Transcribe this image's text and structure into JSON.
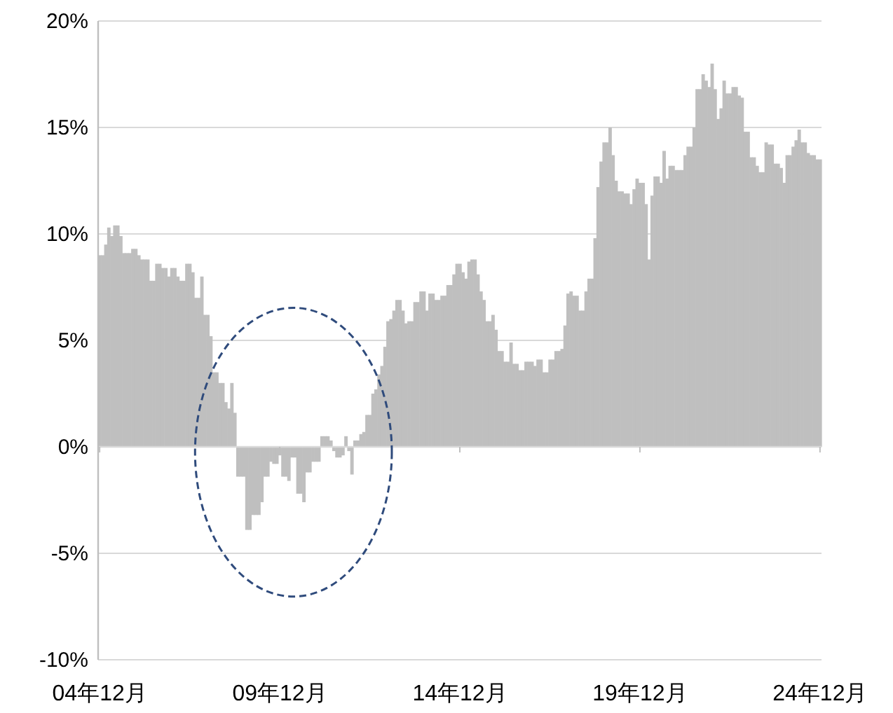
{
  "chart_data": {
    "type": "bar",
    "categories": [
      "04年12月",
      null,
      null,
      null,
      null,
      null,
      null,
      null,
      null,
      null,
      null,
      null,
      null,
      null,
      null,
      null,
      null,
      null,
      null,
      null,
      null,
      null,
      null,
      null,
      null,
      null,
      null,
      null,
      null,
      null,
      null,
      null,
      null,
      null,
      null,
      null,
      null,
      null,
      null,
      null,
      null,
      null,
      null,
      null,
      null,
      null,
      null,
      null,
      null,
      null,
      null,
      null,
      null,
      null,
      null,
      null,
      null,
      null,
      null,
      null,
      "09年12月",
      null,
      null,
      null,
      null,
      null,
      null,
      null,
      null,
      null,
      null,
      null,
      null,
      null,
      null,
      null,
      null,
      null,
      null,
      null,
      null,
      null,
      null,
      null,
      null,
      null,
      null,
      null,
      null,
      null,
      null,
      null,
      null,
      null,
      null,
      null,
      null,
      null,
      null,
      null,
      null,
      null,
      null,
      null,
      null,
      null,
      null,
      null,
      null,
      null,
      null,
      null,
      null,
      null,
      null,
      null,
      null,
      null,
      null,
      null,
      "14年12月",
      null,
      null,
      null,
      null,
      null,
      null,
      null,
      null,
      null,
      null,
      null,
      null,
      null,
      null,
      null,
      null,
      null,
      null,
      null,
      null,
      null,
      null,
      null,
      null,
      null,
      null,
      null,
      null,
      null,
      null,
      null,
      null,
      null,
      null,
      null,
      null,
      null,
      null,
      null,
      null,
      null,
      null,
      null,
      null,
      null,
      null,
      null,
      null,
      null,
      null,
      null,
      null,
      null,
      null,
      null,
      null,
      null,
      null,
      null,
      "19年12月",
      null,
      null,
      null,
      null,
      null,
      null,
      null,
      null,
      null,
      null,
      null,
      null,
      null,
      null,
      null,
      null,
      null,
      null,
      null,
      null,
      null,
      null,
      null,
      null,
      null,
      null,
      null,
      null,
      null,
      null,
      null,
      null,
      null,
      null,
      null,
      null,
      null,
      null,
      null,
      null,
      null,
      null,
      null,
      null,
      null,
      null,
      null,
      null,
      null,
      null,
      null,
      null,
      null,
      null,
      null,
      null,
      null,
      null,
      null,
      "24年12月"
    ],
    "values": [
      9.0,
      9.0,
      9.5,
      10.3,
      9.9,
      10.4,
      10.4,
      9.9,
      9.1,
      9.1,
      9.1,
      9.3,
      9.3,
      9.0,
      8.8,
      8.8,
      8.8,
      7.8,
      7.8,
      8.6,
      8.6,
      8.4,
      8.4,
      8.0,
      8.4,
      8.4,
      8.0,
      7.8,
      7.8,
      8.6,
      8.6,
      8.2,
      7.0,
      7.0,
      8.0,
      6.2,
      6.2,
      5.2,
      3.5,
      3.5,
      3.0,
      3.0,
      2.1,
      1.8,
      3.0,
      1.6,
      -1.4,
      -1.4,
      -1.4,
      -3.9,
      -3.9,
      -3.2,
      -3.2,
      -3.2,
      -2.6,
      -1.4,
      -1.4,
      -0.7,
      -0.8,
      -0.8,
      -0.4,
      -1.4,
      -1.4,
      -1.6,
      -0.5,
      -0.5,
      -2.2,
      -2.2,
      -2.6,
      -1.2,
      -1.2,
      -0.7,
      -0.7,
      -0.7,
      0.5,
      0.5,
      0.5,
      0.3,
      -0.2,
      -0.5,
      -0.5,
      -0.4,
      0.5,
      -0.2,
      -1.3,
      0.3,
      0.3,
      0.6,
      0.7,
      1.5,
      1.5,
      2.5,
      2.7,
      3.4,
      3.8,
      4.7,
      5.9,
      6.0,
      6.4,
      6.9,
      6.9,
      6.4,
      5.8,
      5.9,
      5.9,
      6.8,
      6.8,
      7.3,
      7.3,
      6.4,
      7.2,
      7.2,
      6.9,
      6.9,
      7.1,
      7.1,
      7.6,
      7.6,
      8.1,
      8.6,
      8.6,
      8.2,
      7.9,
      8.7,
      8.8,
      8.8,
      8.1,
      7.3,
      6.9,
      5.9,
      5.9,
      6.2,
      5.5,
      4.5,
      4.5,
      4.0,
      4.0,
      4.9,
      3.9,
      3.9,
      3.6,
      3.6,
      4.0,
      4.0,
      4.0,
      3.8,
      4.1,
      4.1,
      3.5,
      3.5,
      4.1,
      4.1,
      4.5,
      4.5,
      4.6,
      5.7,
      7.2,
      7.3,
      7.1,
      7.1,
      6.4,
      6.4,
      7.3,
      7.9,
      7.9,
      9.8,
      12.2,
      13.4,
      14.3,
      14.3,
      15.0,
      13.7,
      12.5,
      12.0,
      12.0,
      11.9,
      11.9,
      11.4,
      12.1,
      12.6,
      12.4,
      12.4,
      11.4,
      8.8,
      11.8,
      12.7,
      12.7,
      12.4,
      13.9,
      12.6,
      13.2,
      13.2,
      13.0,
      13.0,
      13.0,
      13.7,
      14.1,
      14.1,
      15.0,
      16.8,
      16.8,
      17.5,
      17.2,
      16.9,
      18.0,
      16.8,
      15.4,
      15.9,
      17.2,
      16.6,
      16.6,
      16.9,
      16.9,
      16.5,
      16.4,
      14.8,
      14.8,
      13.6,
      13.6,
      13.2,
      12.9,
      12.9,
      14.3,
      14.2,
      14.2,
      13.3,
      13.3,
      13.1,
      12.4,
      13.7,
      13.7,
      14.1,
      14.4,
      14.9,
      14.3,
      14.3,
      13.8,
      13.7,
      13.7,
      13.5,
      13.5
    ],
    "color": "#bfbfbf",
    "ylim": [
      -10,
      20
    ],
    "yticks": [
      {
        "value": -10,
        "label": "-10%"
      },
      {
        "value": -5,
        "label": "-5%"
      },
      {
        "value": 0,
        "label": "0%"
      },
      {
        "value": 5,
        "label": "5%"
      },
      {
        "value": 10,
        "label": "10%"
      },
      {
        "value": 15,
        "label": "15%"
      },
      {
        "value": 20,
        "label": "20%"
      }
    ],
    "grid": "y"
  }
}
